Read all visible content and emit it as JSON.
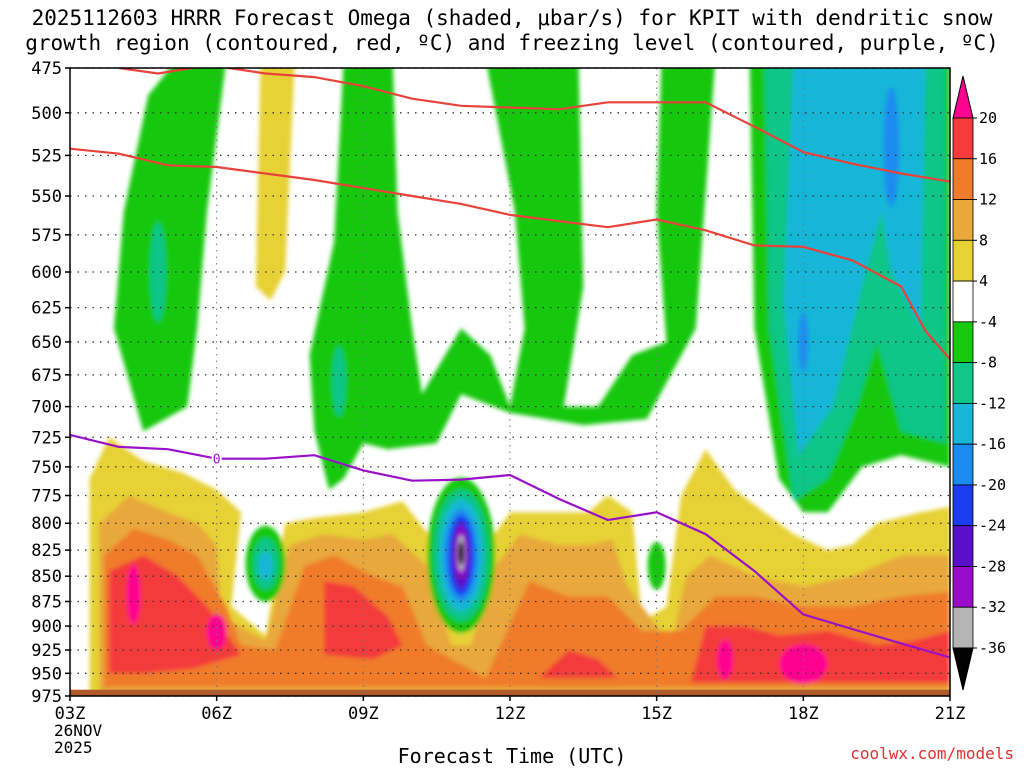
{
  "title_line1": "2025112603 HRRR Forecast Omega (shaded, μbar/s) for KPIT with dendritic snow",
  "title_line2": "growth region (contoured, red, ºC) and freezing level (contoured, purple, ºC)",
  "x_axis_label": "Forecast Time (UTC)",
  "credit": "coolwx.com/models",
  "date_line1": "26NOV",
  "date_line2": "2025",
  "chart_data": {
    "type": "heatmap",
    "x_ticks": [
      "03Z",
      "06Z",
      "09Z",
      "12Z",
      "15Z",
      "18Z",
      "21Z"
    ],
    "x_hours": [
      3,
      21
    ],
    "y_ticks": [
      475,
      500,
      525,
      550,
      575,
      600,
      625,
      650,
      675,
      700,
      725,
      750,
      775,
      800,
      825,
      850,
      875,
      900,
      925,
      950,
      975
    ],
    "y_range_hPa": [
      475,
      975
    ],
    "colorbar": {
      "levels": [
        20,
        16,
        12,
        8,
        4,
        -4,
        -8,
        -12,
        -16,
        -20,
        -24,
        -28,
        -32,
        -36
      ],
      "colors": [
        "#ff0090",
        "#f43a3a",
        "#f07b2a",
        "#e8a83a",
        "#e6d234",
        "#ffffff",
        "#16c80e",
        "#10c688",
        "#18b6d8",
        "#1a8cf0",
        "#1c3cf0",
        "#5a10c8",
        "#9a0cc8",
        "#b4b4b4",
        "#000000"
      ]
    },
    "red_contours": [
      {
        "hours": [
          4,
          4.8,
          5.5,
          6,
          7,
          8,
          9,
          10,
          11,
          12,
          13,
          14,
          15,
          16,
          17,
          18,
          19,
          20,
          21
        ],
        "hPa": [
          475,
          478,
          475,
          474,
          478,
          480,
          485,
          492,
          496,
          497,
          498,
          494,
          494,
          494,
          508,
          523,
          530,
          536,
          541
        ]
      },
      {
        "hours": [
          3,
          4,
          5,
          6,
          7,
          8,
          9,
          10,
          11,
          12,
          13,
          14,
          15,
          16,
          17,
          18,
          19,
          20,
          20.5,
          21
        ],
        "hPa": [
          521,
          524,
          531,
          532,
          536,
          540,
          545,
          550,
          555,
          562,
          566,
          570,
          565,
          572,
          582,
          583,
          592,
          610,
          642,
          663
        ]
      }
    ],
    "purple_contour": {
      "label": "0",
      "hours": [
        3,
        4,
        5,
        6,
        7,
        8,
        9,
        10,
        11,
        12,
        13,
        14,
        15,
        16,
        17,
        18,
        19,
        20,
        21
      ],
      "hPa": [
        723,
        733,
        735,
        743,
        743,
        740,
        753,
        762,
        761,
        757,
        778,
        797,
        790,
        810,
        845,
        888,
        903,
        918,
        933
      ]
    },
    "omega_features": [
      {
        "type": "min",
        "hour": 11,
        "hPa": 828,
        "value": -40
      },
      {
        "type": "max",
        "hour": 4.3,
        "hPa": 868,
        "value": 18
      },
      {
        "type": "max",
        "hour": 6,
        "hPa": 906,
        "value": 17
      },
      {
        "type": "max",
        "hour": 18,
        "hPa": 938,
        "value": 18
      }
    ]
  }
}
